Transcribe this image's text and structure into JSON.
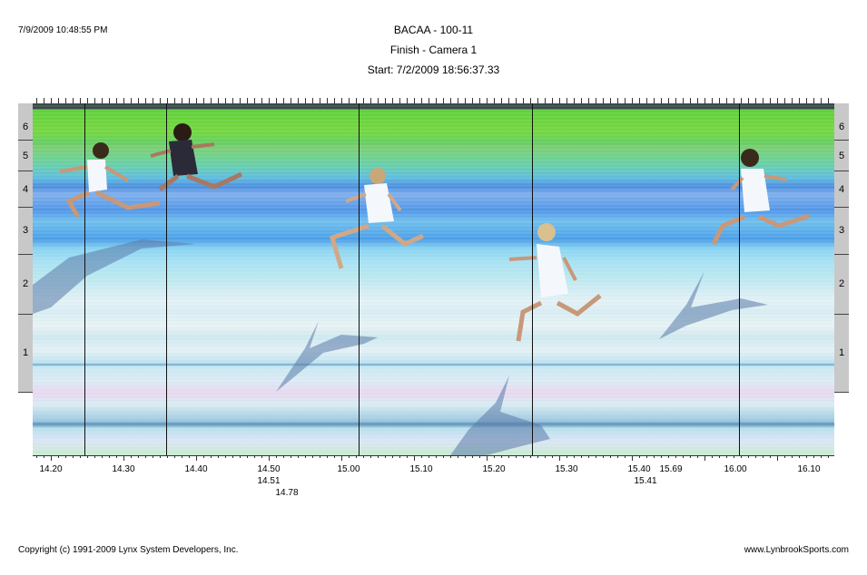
{
  "header": {
    "timestamp": "7/9/2009 10:48:55 PM",
    "event": "BACAA - 100-11",
    "camera": "Finish - Camera 1",
    "start": "Start: 7/2/2009 18:56:37.33"
  },
  "lanes": [
    "6",
    "5",
    "4",
    "3",
    "2",
    "1"
  ],
  "axis": {
    "ticks": [
      "14.20",
      "14.30",
      "14.40",
      "14.50",
      "15.00",
      "15.10",
      "15.20",
      "15.30",
      "15.40",
      "15.69",
      "16.00",
      "16.10"
    ],
    "sub_labels": [
      "14.51",
      "14.78",
      "15.41"
    ]
  },
  "footer": {
    "copyright": "Copyright (c) 1991-2009 Lynx System Developers, Inc.",
    "site": "www.LynbrookSports.com"
  },
  "colors": {
    "track_green": "#6fd23a",
    "track_blue": "#4f95e8",
    "lane_strip": "#c8c8c8"
  }
}
